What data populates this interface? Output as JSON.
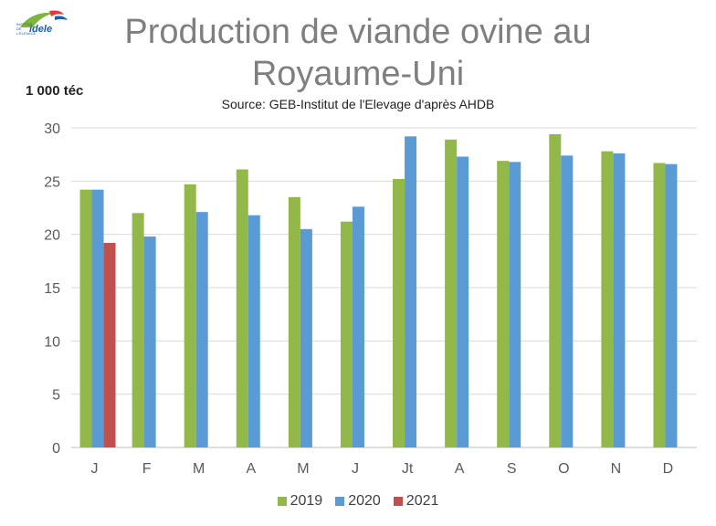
{
  "logo": {
    "brand": "idele",
    "tagline": "INSTITUT DE L'ÉLEVAGE"
  },
  "header": {
    "title": "Production de viande ovine au Royaume-Uni",
    "unit_label": "1 000 téc",
    "source": "Source: GEB-Institut de l'Elevage d'après AHDB"
  },
  "colors": {
    "2019": "#92b849",
    "2020": "#5b9bd5",
    "2021": "#c0504d",
    "grid": "#d9d9d9",
    "axis": "#bfbfbf"
  },
  "chart_data": {
    "type": "bar",
    "title": "Production de viande ovine au Royaume-Uni",
    "ylabel": "1 000 téc",
    "xlabel": "",
    "ylim": [
      0,
      30
    ],
    "yticks": [
      0,
      5,
      10,
      15,
      20,
      25,
      30
    ],
    "grid": true,
    "legend_position": "bottom",
    "categories": [
      "J",
      "F",
      "M",
      "A",
      "M",
      "J",
      "Jt",
      "A",
      "S",
      "O",
      "N",
      "D"
    ],
    "series": [
      {
        "name": "2019",
        "values": [
          24.2,
          22.0,
          24.7,
          26.1,
          23.5,
          21.2,
          25.2,
          28.9,
          26.9,
          29.4,
          27.8,
          26.7
        ]
      },
      {
        "name": "2020",
        "values": [
          24.2,
          19.8,
          22.1,
          21.8,
          20.5,
          22.6,
          29.2,
          27.3,
          26.8,
          27.4,
          27.6,
          26.6
        ]
      },
      {
        "name": "2021",
        "values": [
          19.2,
          null,
          null,
          null,
          null,
          null,
          null,
          null,
          null,
          null,
          null,
          null
        ]
      }
    ]
  }
}
